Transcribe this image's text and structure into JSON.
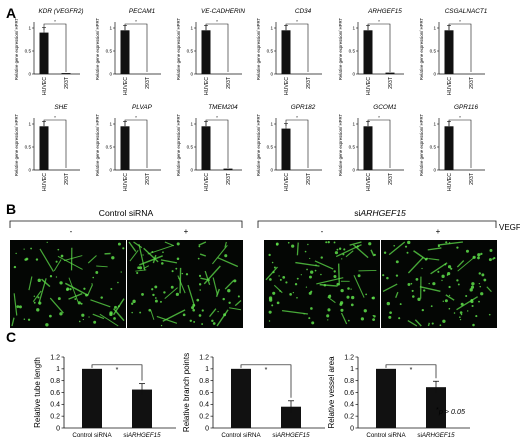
{
  "panels": {
    "a": "A",
    "b": "B",
    "c": "C"
  },
  "panel_a": {
    "ylabel": "Relative gene expression/ HPRT",
    "sig": "*",
    "categories": [
      "HUVEC",
      "293T"
    ],
    "genes": [
      {
        "name": "KDR (VEGFR2)",
        "values": [
          0.9,
          0.02
        ]
      },
      {
        "name": "PECAM1",
        "values": [
          0.95,
          0.0
        ]
      },
      {
        "name": "VE-CADHERIN",
        "values": [
          0.95,
          0.0
        ]
      },
      {
        "name": "CD34",
        "values": [
          0.95,
          0.0
        ]
      },
      {
        "name": "ARHGEF15",
        "values": [
          0.95,
          0.03
        ]
      },
      {
        "name": "CSGALNACT1",
        "values": [
          0.95,
          0.0
        ]
      },
      {
        "name": "SHE",
        "values": [
          0.95,
          0.0
        ]
      },
      {
        "name": "PLVAP",
        "values": [
          0.95,
          0.0
        ]
      },
      {
        "name": "TMEM204",
        "values": [
          0.95,
          0.03
        ]
      },
      {
        "name": "GPR182",
        "values": [
          0.9,
          0.0
        ]
      },
      {
        "name": "GCOM1",
        "values": [
          0.95,
          0.0
        ]
      },
      {
        "name": "GPR116",
        "values": [
          0.95,
          0.0
        ]
      }
    ]
  },
  "panel_b": {
    "control_label": "Control siRNA",
    "si_prefix": "si",
    "si_gene": "ARHGEF15",
    "minus": "-",
    "plus": "+",
    "vegf": "VEGF"
  },
  "chart_data": [
    {
      "type": "bar",
      "categories": [
        "Control siRNA",
        "siARHGEF15"
      ],
      "values": [
        1.0,
        0.65
      ],
      "errors": [
        0.0,
        0.1
      ],
      "ylabel": "Relative tube length",
      "yticks": [
        "0",
        "0.2",
        "0.4",
        "0.6",
        "0.8",
        "1",
        "1.2"
      ],
      "ylim": [
        0,
        1.2
      ],
      "sig": "*"
    },
    {
      "type": "bar",
      "categories": [
        "Control siRNA",
        "siARHGEF15"
      ],
      "values": [
        1.0,
        0.36
      ],
      "errors": [
        0.0,
        0.1
      ],
      "ylabel": "Relative branch points",
      "yticks": [
        "0",
        "0.2",
        "0.4",
        "0.6",
        "0.8",
        "1",
        "1.2"
      ],
      "ylim": [
        0,
        1.2
      ],
      "sig": "*"
    },
    {
      "type": "bar",
      "categories": [
        "Control siRNA",
        "siARHGEF15"
      ],
      "values": [
        1.0,
        0.69
      ],
      "errors": [
        0.0,
        0.1
      ],
      "ylabel": "Relative vessel area",
      "yticks": [
        "0",
        "0.2",
        "0.4",
        "0.6",
        "0.8",
        "1",
        "1.2"
      ],
      "ylim": [
        0,
        1.2
      ],
      "sig": "*"
    }
  ],
  "footnote": {
    "star": "*",
    "text": "p > 0.05"
  },
  "colors": {
    "bar": "#111111",
    "micrograph_bg": "#040604",
    "vessel": "#5ee04a"
  }
}
